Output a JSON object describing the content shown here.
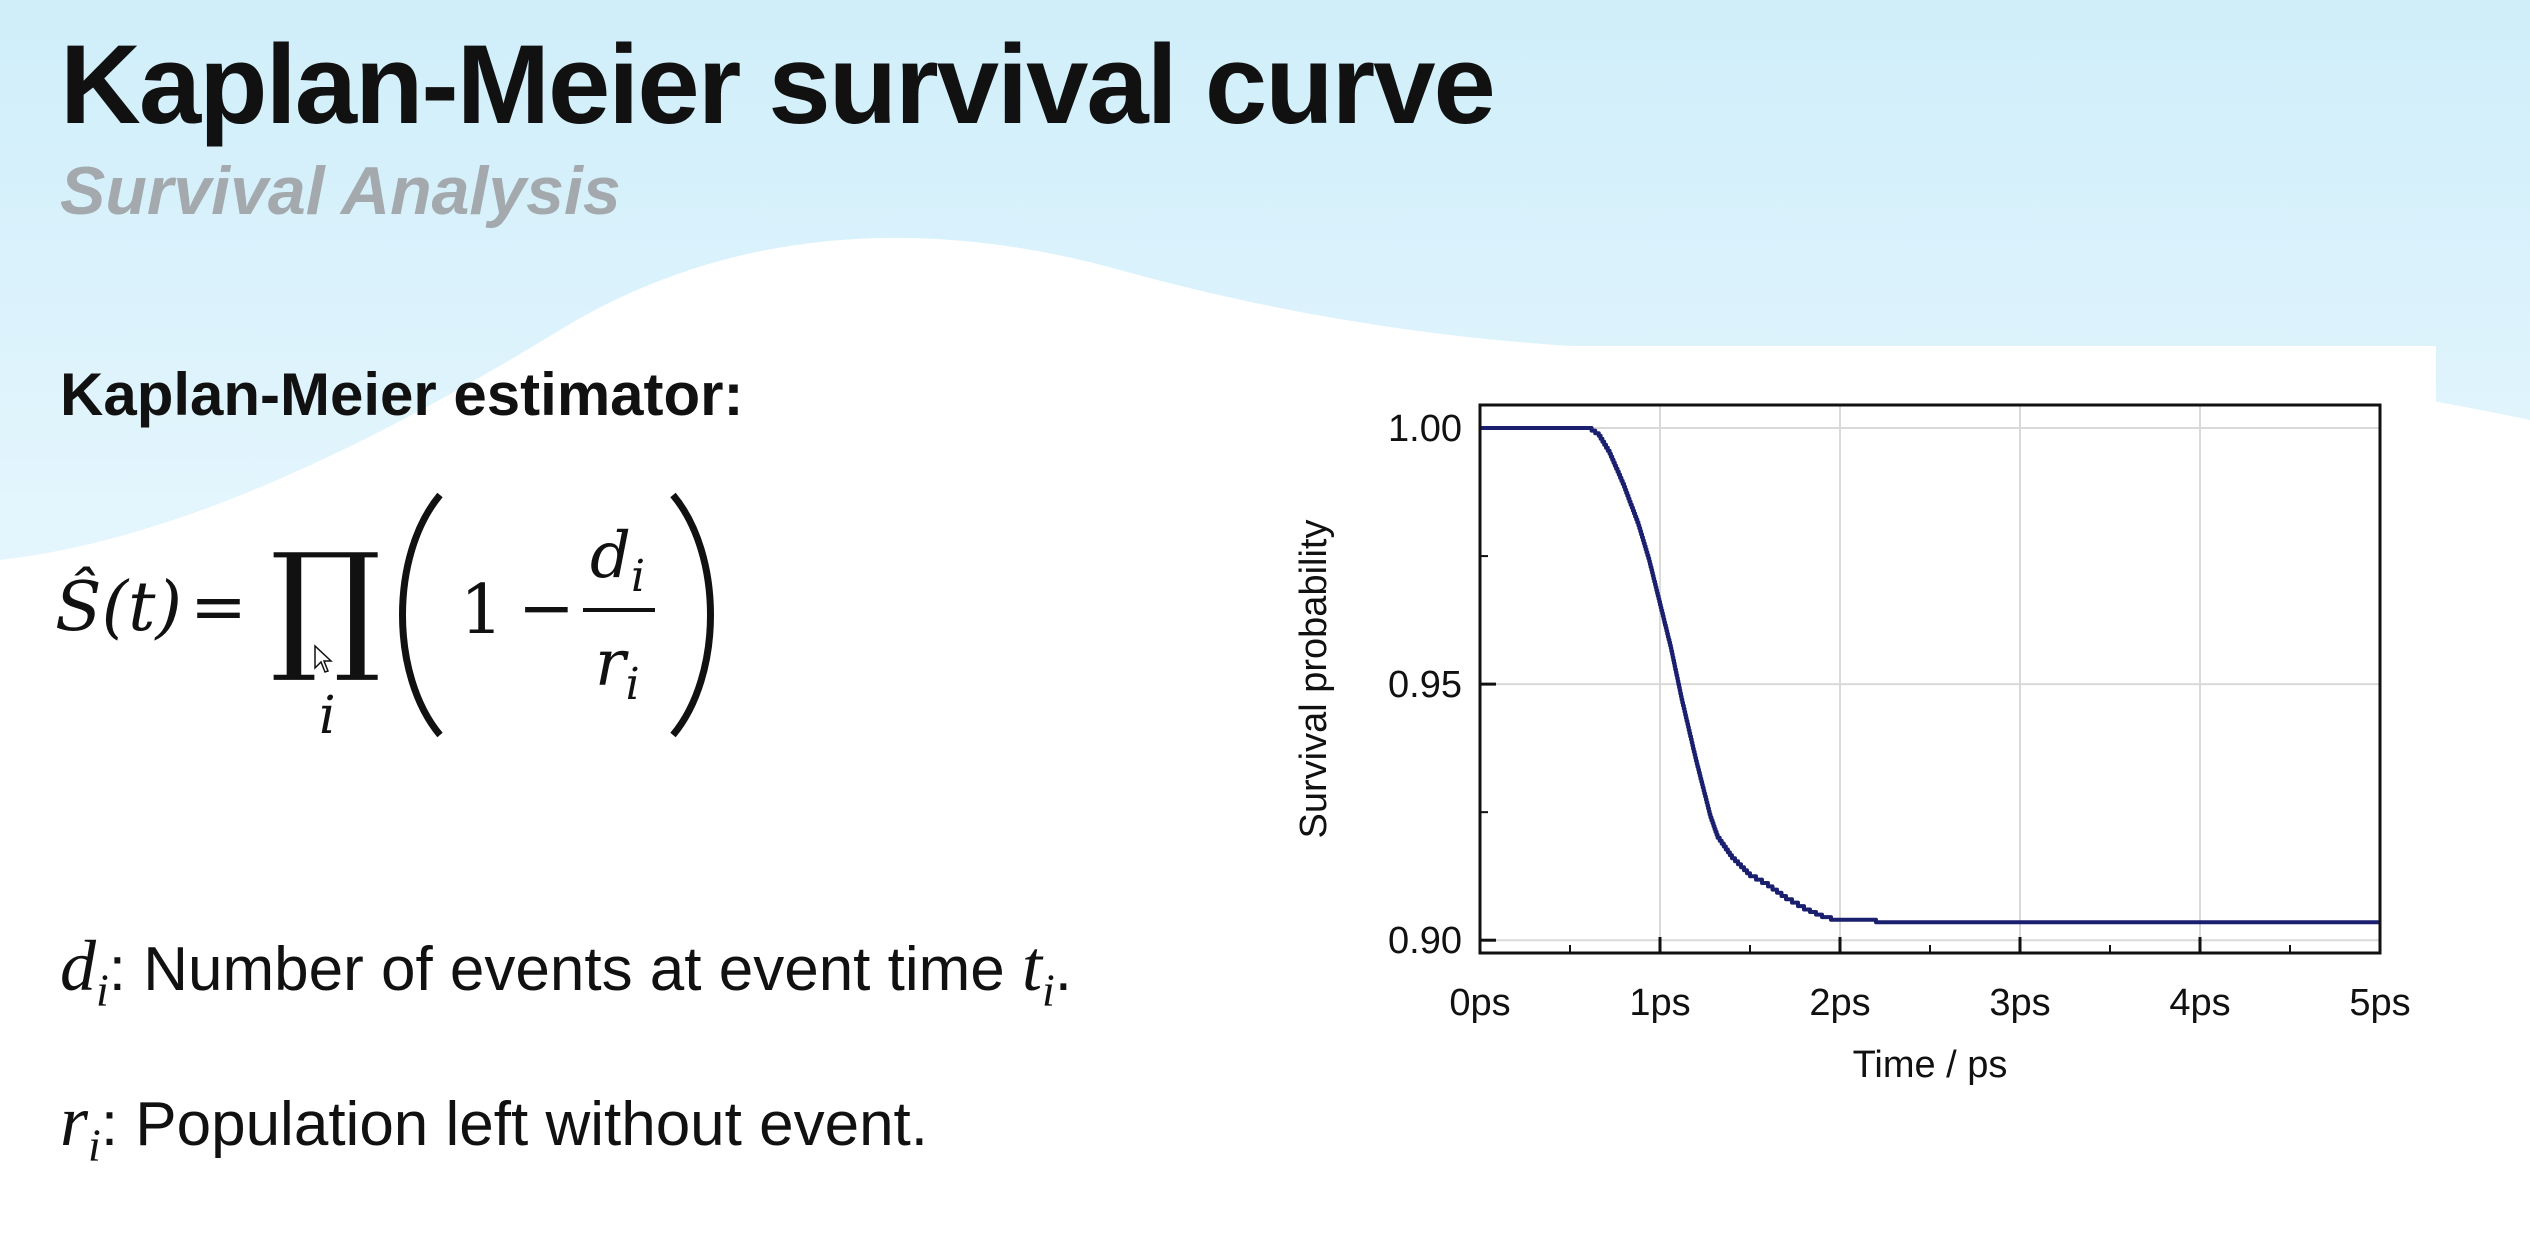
{
  "slide": {
    "title": "Kaplan-Meier survival curve",
    "subtitle": "Survival Analysis",
    "estimator_heading": "Kaplan-Meier estimator:",
    "formula": {
      "lhs": "Ŝ(t)",
      "equals": "=",
      "product_symbol": "∏",
      "index": "i",
      "one": "1",
      "minus": "−",
      "numerator": "d",
      "numerator_sub": "i",
      "denominator": "r",
      "denominator_sub": "i"
    },
    "definitions": [
      {
        "var": "d",
        "sub": "i",
        "text": ": Number of events at event time ",
        "tvar": "t",
        "tsub": "i",
        "end": "."
      },
      {
        "var": "r",
        "sub": "i",
        "text": ": Population left without event."
      }
    ]
  },
  "colors": {
    "curve": "#1a1f6e",
    "grid": "#d9d9d9",
    "axis": "#111111"
  },
  "chart_data": {
    "type": "line",
    "title": "",
    "xlabel": "Time / ps",
    "ylabel": "Survival probability",
    "xlim": [
      0,
      5
    ],
    "ylim": [
      0.8975,
      1.0045
    ],
    "x_ticks": [
      0,
      1,
      2,
      3,
      4,
      5
    ],
    "x_tick_labels": [
      "0ps",
      "1ps",
      "2ps",
      "3ps",
      "4ps",
      "5ps"
    ],
    "y_ticks": [
      0.9,
      0.95,
      1.0
    ],
    "y_tick_labels": [
      "0.90",
      "0.95",
      "1.00"
    ],
    "grid": true,
    "legend": false,
    "series": [
      {
        "x": [
          0,
          0.5,
          0.6,
          0.66,
          0.72,
          0.8,
          0.88,
          0.94,
          1.0,
          1.06,
          1.12,
          1.2,
          1.28,
          1.32,
          1.4,
          1.5,
          1.6,
          1.7,
          1.8,
          1.9,
          1.95,
          2.05,
          2.2,
          2.5,
          3.0,
          4.0,
          5.0
        ],
        "y": [
          1.0,
          1.0,
          1.0,
          0.9985,
          0.995,
          0.9885,
          0.981,
          0.974,
          0.9655,
          0.957,
          0.947,
          0.935,
          0.924,
          0.92,
          0.916,
          0.9125,
          0.9105,
          0.908,
          0.906,
          0.9045,
          0.904,
          0.904,
          0.9035,
          0.9035,
          0.9035,
          0.9035,
          0.9035
        ]
      }
    ]
  }
}
